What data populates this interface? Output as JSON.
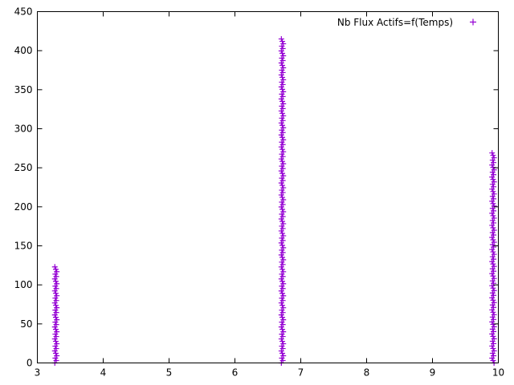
{
  "chart_data": {
    "type": "scatter",
    "title": "",
    "xlabel": "",
    "ylabel": "",
    "xlim": [
      3,
      10
    ],
    "ylim": [
      0,
      450
    ],
    "x_ticks": [
      3,
      4,
      5,
      6,
      7,
      8,
      9,
      10
    ],
    "y_ticks": [
      0,
      50,
      100,
      150,
      200,
      250,
      300,
      350,
      400,
      450
    ],
    "grid": false,
    "legend_position": "top-right",
    "marker": "plus",
    "series": [
      {
        "name": "Nb Flux Actifs=f(Temps)",
        "color": "#9400d3",
        "clusters": [
          {
            "x": 3.28,
            "y_min": 0,
            "y_max": 123
          },
          {
            "x": 6.72,
            "y_min": 0,
            "y_max": 415
          },
          {
            "x": 9.92,
            "y_min": 0,
            "y_max": 269
          }
        ]
      }
    ]
  }
}
